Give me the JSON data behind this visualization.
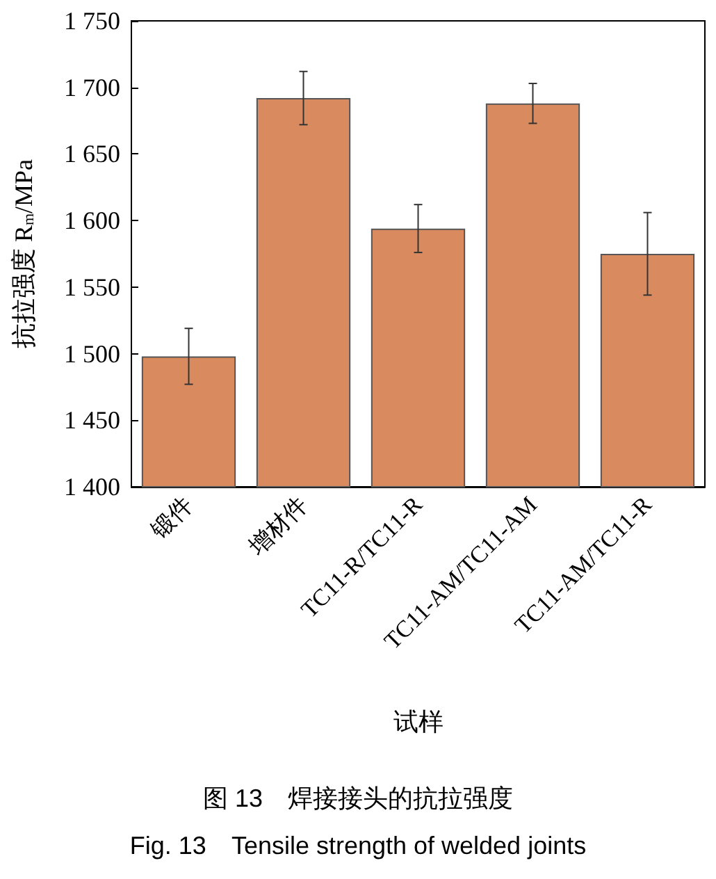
{
  "chart_data": {
    "type": "bar",
    "xlabel": "试样",
    "ylabel": "抗拉强度 R$_{m}$/MPa",
    "categories": [
      "锻件",
      "增材件",
      "TC11-R/TC11-R",
      "TC11-AM/TC11-AM",
      "TC11-AM/TC11-R"
    ],
    "values": [
      1498,
      1692,
      1594,
      1688,
      1575
    ],
    "errors": [
      21,
      20,
      18,
      15,
      31
    ],
    "color": "#d98b5f",
    "ylim": [
      1400,
      1750
    ],
    "yticks": [
      {
        "value": 1400,
        "label": "1 400"
      },
      {
        "value": 1450,
        "label": "1 450"
      },
      {
        "value": 1500,
        "label": "1 500"
      },
      {
        "value": 1550,
        "label": "1 550"
      },
      {
        "value": 1600,
        "label": "1 600"
      },
      {
        "value": 1650,
        "label": "1 650"
      },
      {
        "value": 1700,
        "label": "1 700"
      },
      {
        "value": 1750,
        "label": "1 750"
      }
    ],
    "grid": false,
    "annotations": [
      "图 13　焊接接头的抗拉强度",
      "Fig. 13　Tensile strength of welded joints"
    ]
  }
}
